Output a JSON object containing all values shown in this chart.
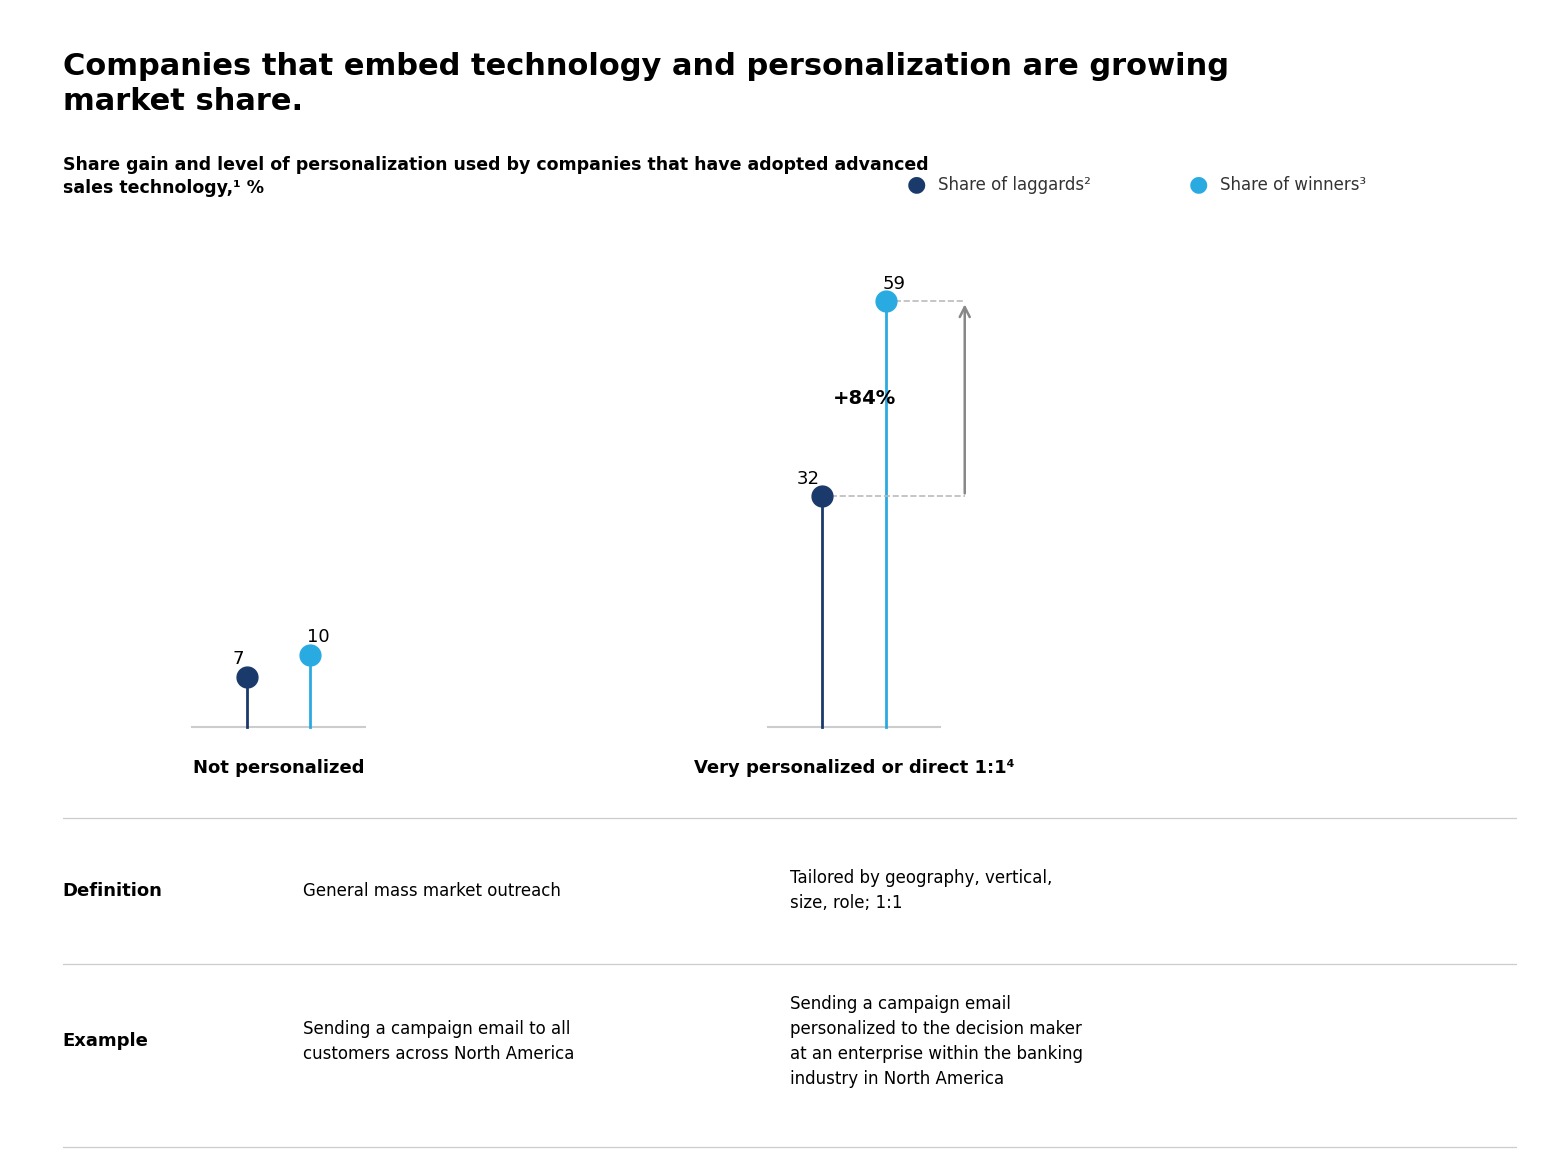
{
  "title": "Companies that embed technology and personalization are growing\nmarket share.",
  "subtitle": "Share gain and level of personalization used by companies that have adopted advanced\nsales technology,¹ %",
  "legend": [
    {
      "label": "Share of laggards²",
      "color": "#1a3a6b"
    },
    {
      "label": "Share of winners³",
      "color": "#29abe2"
    }
  ],
  "categories": [
    "Not personalized",
    "Very personalized or direct 1:1⁴"
  ],
  "laggards": [
    7,
    32
  ],
  "winners": [
    10,
    59
  ],
  "gain_label": "+84%",
  "laggard_color": "#1a3a6b",
  "winner_color": "#29abe2",
  "arrow_color": "#888888",
  "dashed_color": "#bbbbbb",
  "line_color": "#cccccc",
  "table_rows": [
    {
      "label": "Definition",
      "col1": "General mass market outreach",
      "col2": "Tailored by geography, vertical,\nsize, role; 1:1"
    },
    {
      "label": "Example",
      "col1": "Sending a campaign email to all\ncustomers across North America",
      "col2": "Sending a campaign email\npersonalized to the decision maker\nat an enterprise within the banking\nindustry in North America"
    }
  ],
  "background_color": "#ffffff"
}
